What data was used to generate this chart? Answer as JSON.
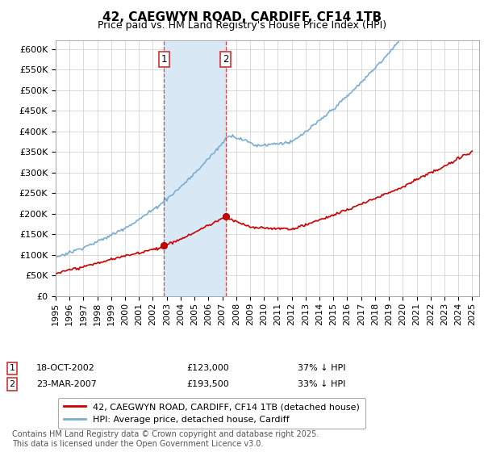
{
  "title": "42, CAEGWYN ROAD, CARDIFF, CF14 1TB",
  "subtitle": "Price paid vs. HM Land Registry's House Price Index (HPI)",
  "ylim": [
    0,
    620000
  ],
  "yticks": [
    0,
    50000,
    100000,
    150000,
    200000,
    250000,
    300000,
    350000,
    400000,
    450000,
    500000,
    550000,
    600000
  ],
  "ytick_labels": [
    "£0",
    "£50K",
    "£100K",
    "£150K",
    "£200K",
    "£250K",
    "£300K",
    "£350K",
    "£400K",
    "£450K",
    "£500K",
    "£550K",
    "£600K"
  ],
  "transaction1_date": 2002.8,
  "transaction1_label": "18-OCT-2002",
  "transaction1_price": "£123,000",
  "transaction1_pct": "37% ↓ HPI",
  "transaction2_date": 2007.23,
  "transaction2_label": "23-MAR-2007",
  "transaction2_price": "£193,500",
  "transaction2_pct": "33% ↓ HPI",
  "legend_line1": "42, CAEGWYN ROAD, CARDIFF, CF14 1TB (detached house)",
  "legend_line2": "HPI: Average price, detached house, Cardiff",
  "footer": "Contains HM Land Registry data © Crown copyright and database right 2025.\nThis data is licensed under the Open Government Licence v3.0.",
  "line_color_red": "#cc0000",
  "line_color_blue": "#7aadcf",
  "shade_color": "#d8e8f5",
  "background_color": "#ffffff",
  "grid_color": "#cccccc",
  "title_fontsize": 11,
  "subtitle_fontsize": 9,
  "tick_fontsize": 8,
  "legend_fontsize": 8,
  "footer_fontsize": 7
}
